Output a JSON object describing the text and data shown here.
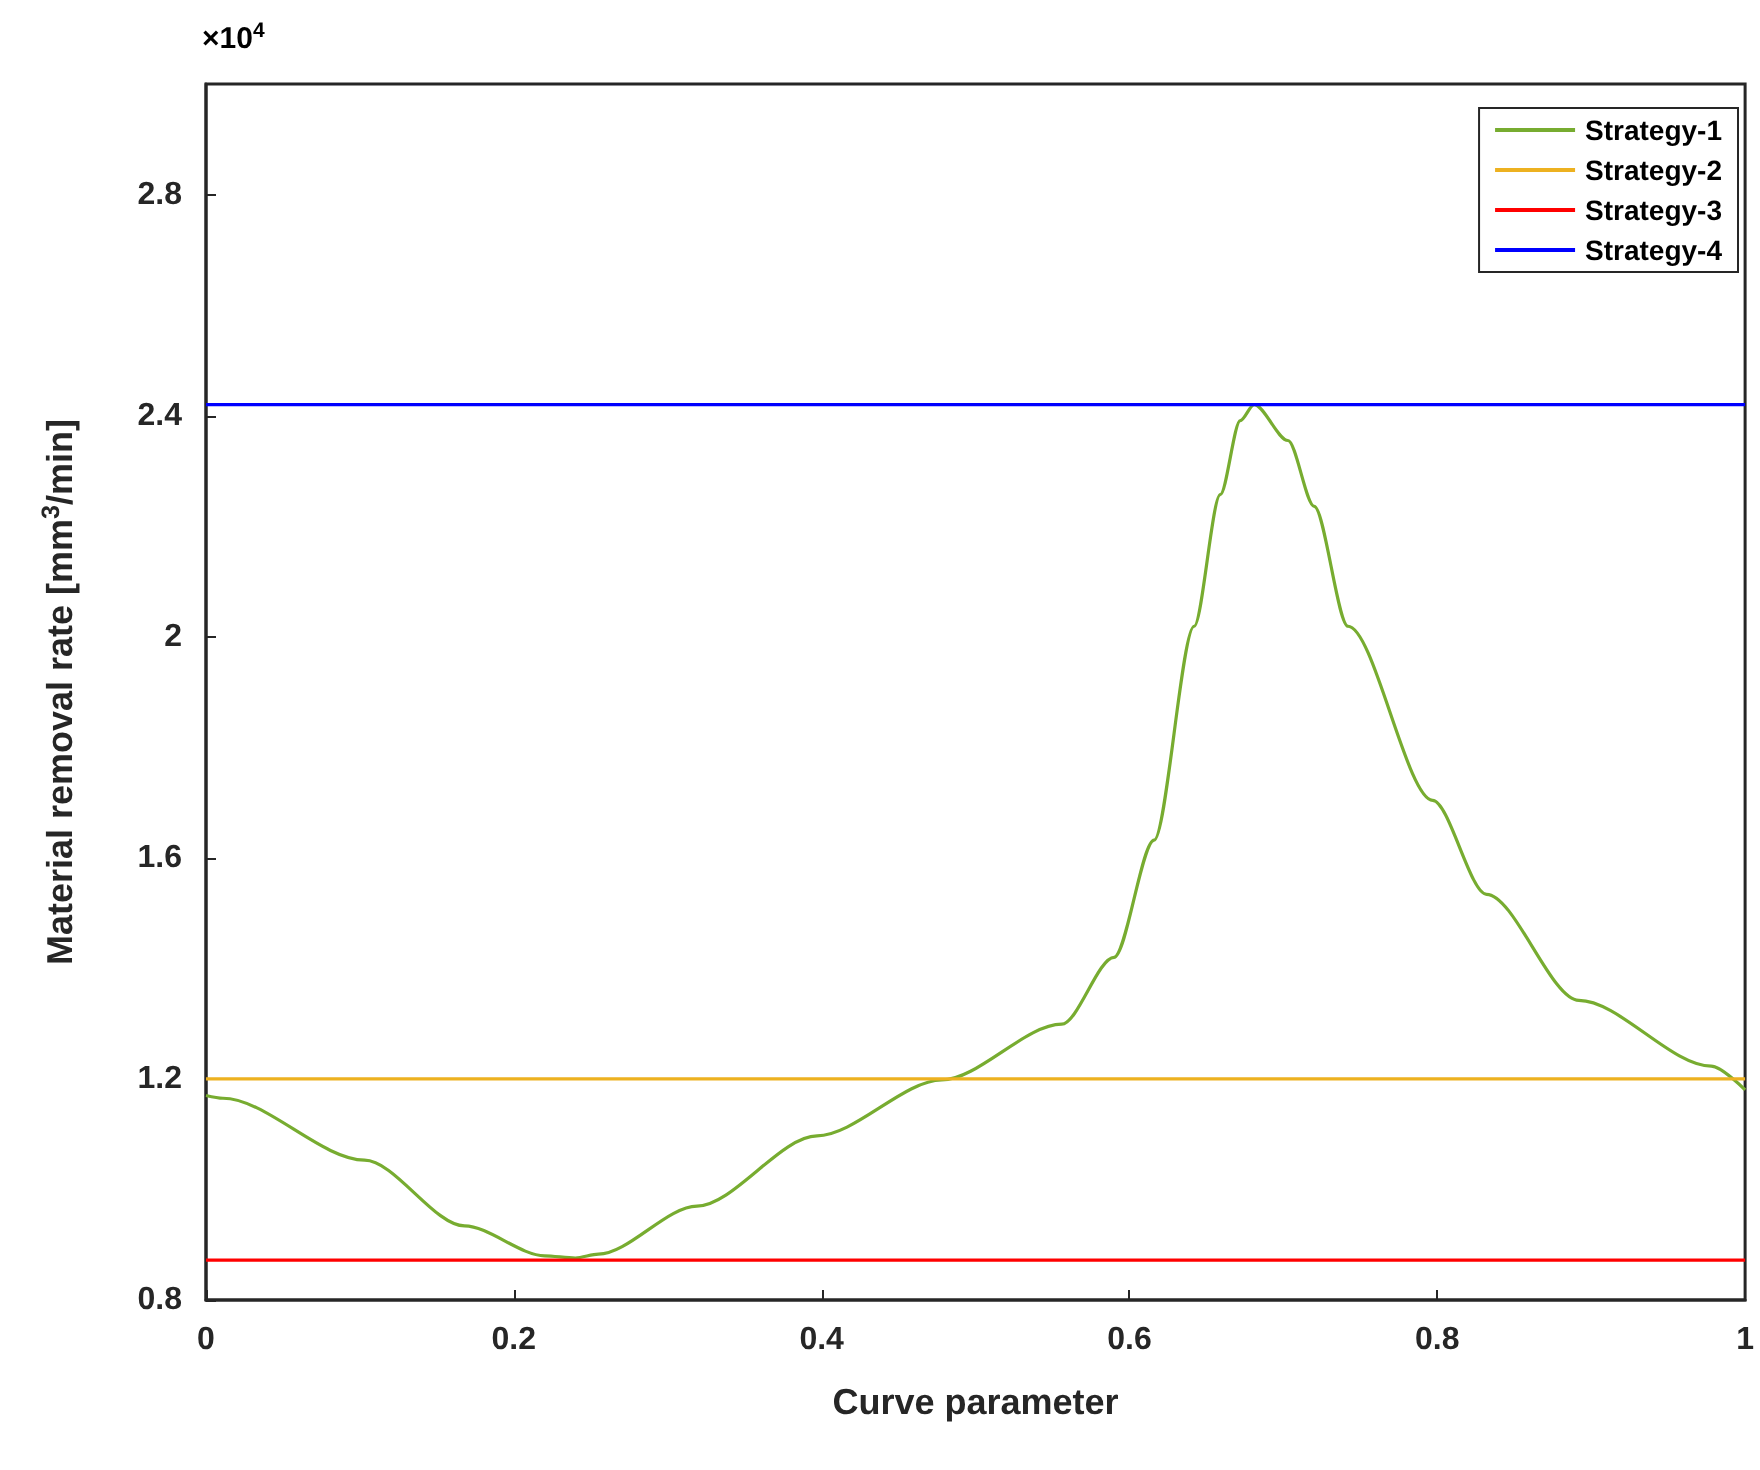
{
  "chart_data": {
    "type": "line",
    "xlabel": "Curve parameter",
    "ylabel": "Material removal rate [mm$^{3}$/min]",
    "annotations": [
      "×10$^{4}$"
    ],
    "series": [
      {
        "name": "Strategy-1",
        "color": "#77ac30",
        "x": [
          0,
          0.011,
          0.103,
          0.168,
          0.22,
          0.24,
          0.255,
          0.319,
          0.397,
          0.478,
          0.556,
          0.59,
          0.616,
          0.642,
          0.659,
          0.672,
          0.681,
          0.703,
          0.72,
          0.742,
          0.797,
          0.832,
          0.892,
          0.978,
          1
        ],
        "values": [
          1.17,
          1.165,
          1.053,
          0.934,
          0.88,
          0.876,
          0.883,
          0.97,
          1.097,
          1.198,
          1.299,
          1.42,
          1.632,
          2.019,
          2.257,
          2.391,
          2.42,
          2.355,
          2.236,
          2.019,
          1.704,
          1.534,
          1.342,
          1.223,
          1.18
        ]
      },
      {
        "name": "Strategy-2",
        "color": "#edb120",
        "x": [
          0,
          1
        ],
        "values": [
          1.2,
          1.2
        ]
      },
      {
        "name": "Strategy-3",
        "color": "#ff0000",
        "x": [
          0,
          1
        ],
        "values": [
          0.872,
          0.872
        ]
      },
      {
        "name": "Strategy-4",
        "color": "#0000ff",
        "x": [
          0,
          1
        ],
        "values": [
          2.42,
          2.42
        ]
      }
    ],
    "xlim": [
      0,
      1
    ],
    "xticks": [
      0,
      0.2,
      0.4,
      0.6,
      0.8,
      1
    ],
    "ylim": [
      0.8,
      3.0
    ],
    "yticks": [
      0.8,
      1.2,
      1.6,
      2,
      2.4,
      2.8
    ],
    "grid": false,
    "legend": "top right",
    "marker": "none",
    "line_style": "solid"
  }
}
